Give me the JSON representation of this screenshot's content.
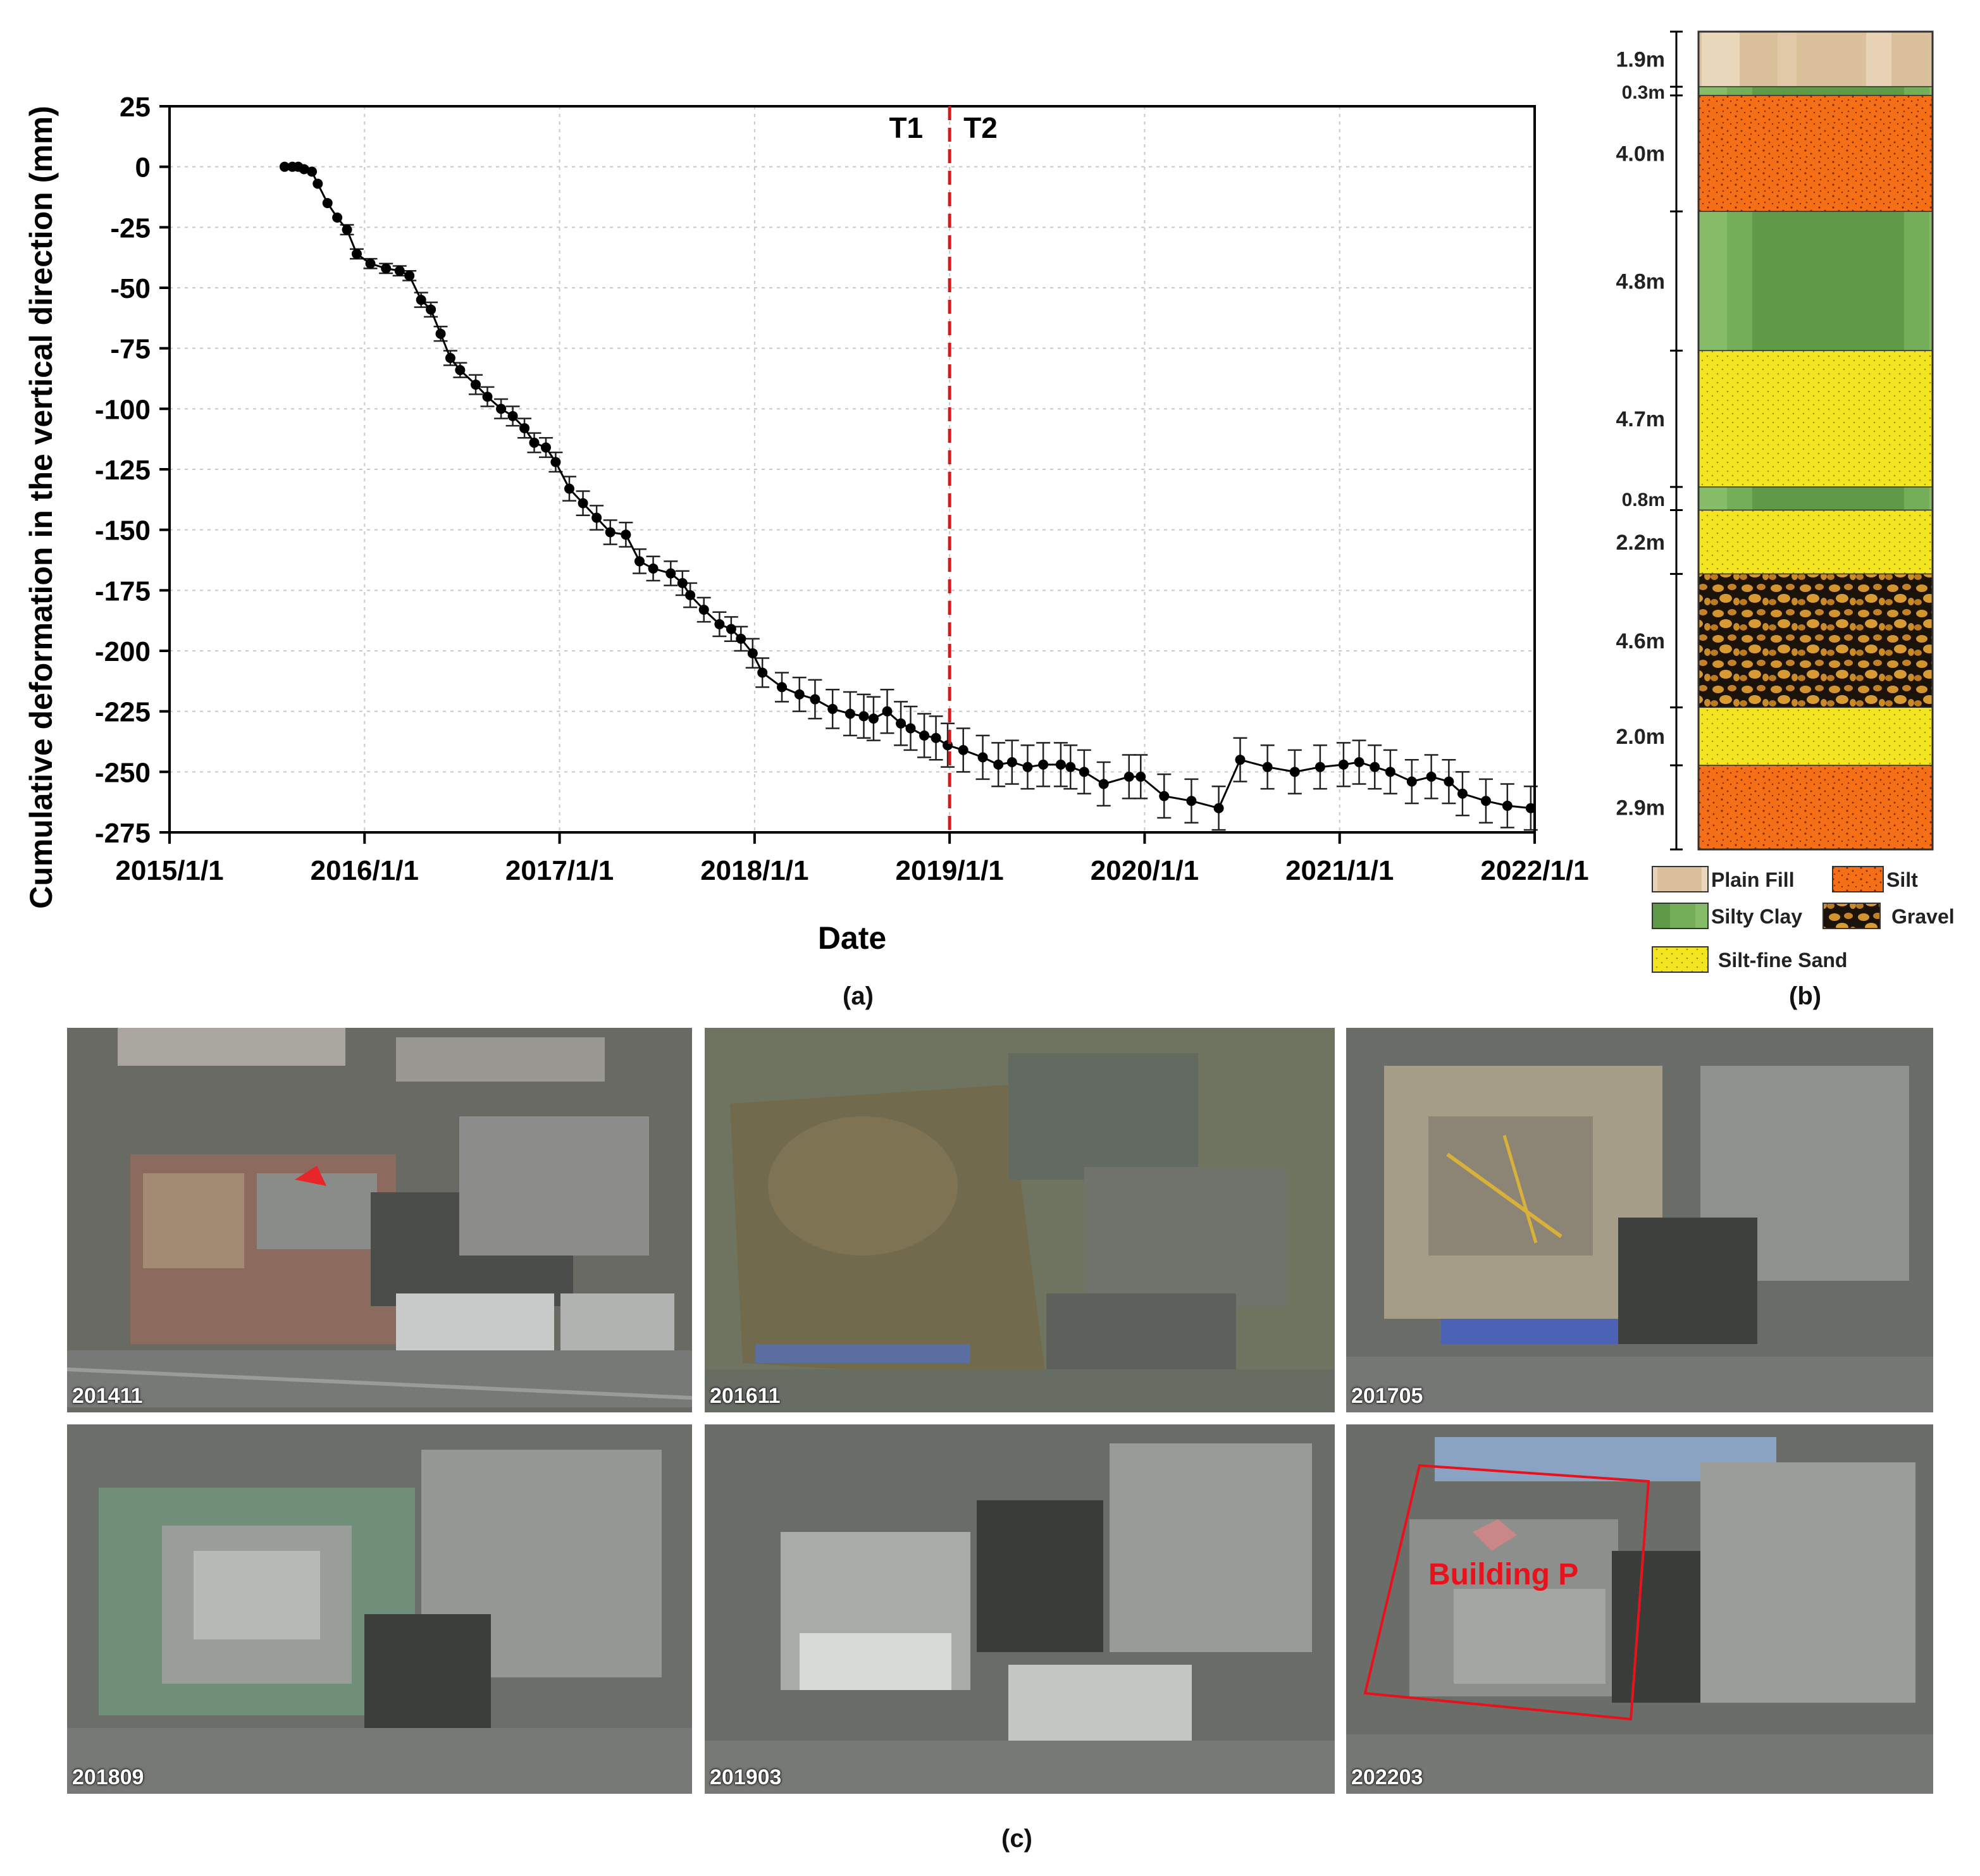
{
  "chart_data": {
    "type": "line",
    "title": "",
    "xlabel": "Date",
    "ylabel": "Cumulative deformation in the vertical direction (mm)",
    "xlim": [
      "2015/1/1",
      "2022/1/1"
    ],
    "ylim": [
      -275,
      25
    ],
    "x_ticks": [
      "2015/1/1",
      "2016/1/1",
      "2017/1/1",
      "2018/1/1",
      "2019/1/1",
      "2020/1/1",
      "2021/1/1",
      "2022/1/1"
    ],
    "y_ticks": [
      25,
      0,
      -25,
      -50,
      -75,
      -100,
      -125,
      -150,
      -175,
      -200,
      -225,
      -250,
      -275
    ],
    "grid": true,
    "error_bars": true,
    "divider": {
      "date": 2019.0,
      "left_label": "T1",
      "right_label": "T2",
      "color": "#d7191c"
    },
    "series": [
      {
        "name": "Cumulative deformation",
        "x": [
          2015.59,
          2015.63,
          2015.66,
          2015.69,
          2015.73,
          2015.76,
          2015.81,
          2015.86,
          2015.91,
          2015.96,
          2016.03,
          2016.11,
          2016.18,
          2016.23,
          2016.29,
          2016.34,
          2016.39,
          2016.44,
          2016.49,
          2016.57,
          2016.63,
          2016.7,
          2016.76,
          2016.82,
          2016.87,
          2016.93,
          2016.98,
          2017.05,
          2017.12,
          2017.19,
          2017.26,
          2017.34,
          2017.41,
          2017.48,
          2017.57,
          2017.63,
          2017.67,
          2017.74,
          2017.82,
          2017.88,
          2017.93,
          2017.99,
          2018.04,
          2018.14,
          2018.23,
          2018.31,
          2018.4,
          2018.49,
          2018.56,
          2018.61,
          2018.68,
          2018.75,
          2018.8,
          2018.87,
          2018.93,
          2018.99,
          2019.07,
          2019.17,
          2019.25,
          2019.32,
          2019.4,
          2019.48,
          2019.57,
          2019.62,
          2019.69,
          2019.79,
          2019.92,
          2019.98,
          2020.1,
          2020.24,
          2020.38,
          2020.49,
          2020.63,
          2020.77,
          2020.9,
          2021.02,
          2021.1,
          2021.18,
          2021.26,
          2021.37,
          2021.47,
          2021.56,
          2021.63,
          2021.75,
          2021.86,
          2021.98
        ],
        "values": [
          0,
          0,
          0,
          -1,
          -2,
          -7,
          -15,
          -21,
          -26,
          -36,
          -40,
          -42,
          -43,
          -45,
          -55,
          -59,
          -69,
          -79,
          -84,
          -90,
          -95,
          -100,
          -103,
          -108,
          -114,
          -116,
          -122,
          -133,
          -139,
          -145,
          -151,
          -152,
          -163,
          -166,
          -168,
          -172,
          -177,
          -183,
          -189,
          -191,
          -195,
          -201,
          -209,
          -215,
          -218,
          -220,
          -224,
          -226,
          -227,
          -228,
          -225,
          -230,
          -232,
          -235,
          -236,
          -239,
          -241,
          -244,
          -247,
          -246,
          -248,
          -247,
          -247,
          -248,
          -250,
          -255,
          -252,
          -252,
          -260,
          -262,
          -265,
          -245,
          -248,
          -250,
          -248,
          -247,
          -246,
          -248,
          -250,
          -254,
          -252,
          -254,
          -259,
          -262,
          -264,
          -265
        ],
        "errors": [
          0,
          0,
          0,
          0,
          0,
          0,
          0,
          0,
          2,
          2,
          2,
          2,
          2,
          2,
          3,
          3,
          3,
          3,
          3,
          4,
          4,
          4,
          4,
          4,
          4,
          4,
          4,
          5,
          5,
          5,
          5,
          5,
          5,
          5,
          5,
          5,
          5,
          5,
          5,
          5,
          5,
          6,
          6,
          6,
          7,
          8,
          8,
          9,
          9,
          9,
          9,
          9,
          9,
          9,
          9,
          9,
          9,
          9,
          9,
          9,
          9,
          9,
          9,
          9,
          9,
          9,
          9,
          9,
          9,
          9,
          9,
          9,
          9,
          9,
          9,
          9,
          9,
          9,
          9,
          9,
          9,
          9,
          9,
          9,
          9,
          9
        ]
      }
    ]
  },
  "panels": {
    "a": "(a)",
    "b": "(b)",
    "c": "(c)"
  },
  "soil_column": {
    "layers": [
      {
        "thickness": "1.9m",
        "material": "Plain Fill",
        "depth": 1.9
      },
      {
        "thickness": "0.3m",
        "material": "Silty Clay",
        "depth": 0.3
      },
      {
        "thickness": "4.0m",
        "material": "Silt",
        "depth": 4.0
      },
      {
        "thickness": "4.8m",
        "material": "Silty Clay",
        "depth": 4.8
      },
      {
        "thickness": "4.7m",
        "material": "Silt-fine Sand",
        "depth": 4.7
      },
      {
        "thickness": "0.8m",
        "material": "Silty Clay",
        "depth": 0.8
      },
      {
        "thickness": "2.2m",
        "material": "Silt-fine Sand",
        "depth": 2.2
      },
      {
        "thickness": "4.6m",
        "material": "Gravel",
        "depth": 4.6
      },
      {
        "thickness": "2.0m",
        "material": "Silt-fine Sand",
        "depth": 2.0
      },
      {
        "thickness": "2.9m",
        "material": "Silt",
        "depth": 2.9
      }
    ],
    "legend": [
      "Plain Fill",
      "Silt",
      "Silty Clay",
      "Gravel",
      "Silt-fine Sand"
    ],
    "colors": {
      "Plain Fill": "#dcc3a3",
      "Silt": "#f5731a",
      "Silty Clay": "#6ba34f",
      "Gravel": "#c88a2e",
      "Silt-fine Sand": "#f2e31f"
    }
  },
  "photos": [
    {
      "date": "201411"
    },
    {
      "date": "201611"
    },
    {
      "date": "201705"
    },
    {
      "date": "201809"
    },
    {
      "date": "201903"
    },
    {
      "date": "202203",
      "annotation": "Building P"
    }
  ]
}
